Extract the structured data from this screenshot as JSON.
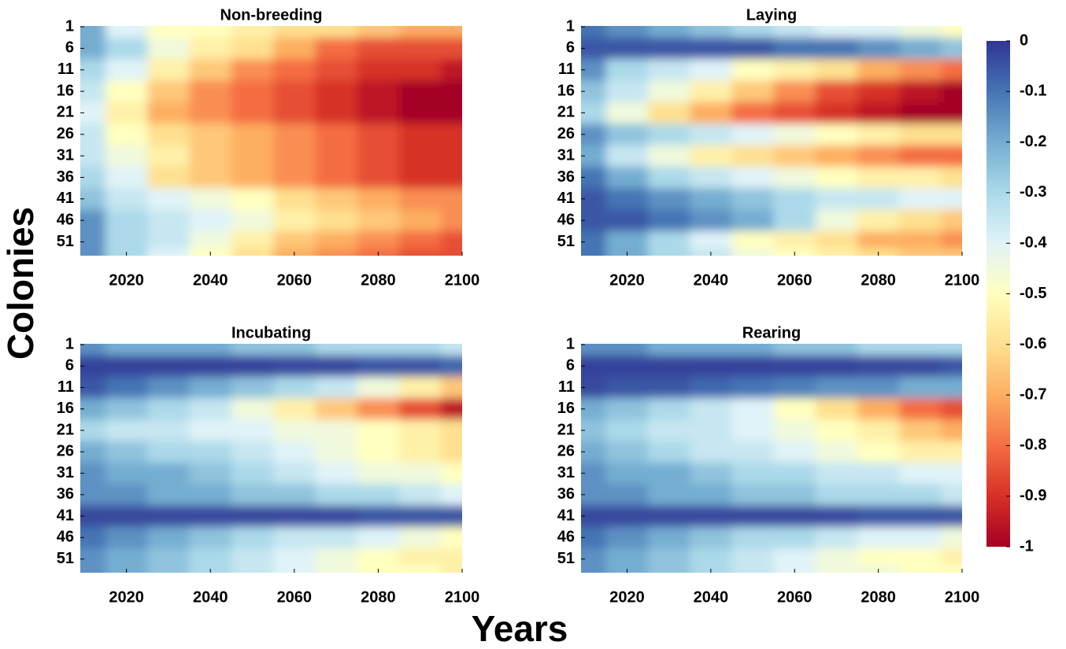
{
  "xlabel": "Years",
  "ylabel": "Colonies",
  "colorbar": {
    "clim": [
      -1,
      0
    ],
    "ticks": [
      0,
      -0.1,
      -0.2,
      -0.3,
      -0.4,
      -0.5,
      -0.6,
      -0.7,
      -0.8,
      -0.9,
      -1
    ],
    "colormap": [
      "#313695",
      "#4575b4",
      "#74add1",
      "#abd9e9",
      "#e0f3f8",
      "#ffffbf",
      "#fee090",
      "#fdae61",
      "#f46d43",
      "#d73027",
      "#a50026"
    ]
  },
  "chart_data": [
    {
      "type": "heatmap",
      "title": "Non-breeding",
      "xlim": [
        2009,
        2100
      ],
      "xticks": [
        2020,
        2040,
        2060,
        2080,
        2100
      ],
      "ylim": [
        0.8,
        54.2
      ],
      "y_reversed": true,
      "yticks": [
        1,
        6,
        11,
        16,
        21,
        26,
        31,
        36,
        41,
        46,
        51
      ],
      "x": [
        2010,
        2020,
        2030,
        2040,
        2050,
        2060,
        2070,
        2080,
        2090,
        2100
      ],
      "y": [
        1,
        6,
        11,
        16,
        21,
        26,
        31,
        36,
        41,
        46,
        51,
        54
      ],
      "z": [
        [
          -0.2,
          -0.4,
          -0.5,
          -0.5,
          -0.55,
          -0.6,
          -0.6,
          -0.65,
          -0.7,
          -0.7
        ],
        [
          -0.2,
          -0.3,
          -0.45,
          -0.55,
          -0.6,
          -0.7,
          -0.8,
          -0.85,
          -0.85,
          -0.85
        ],
        [
          -0.3,
          -0.4,
          -0.55,
          -0.65,
          -0.75,
          -0.8,
          -0.85,
          -0.9,
          -0.9,
          -0.95
        ],
        [
          -0.35,
          -0.5,
          -0.65,
          -0.75,
          -0.8,
          -0.85,
          -0.9,
          -0.95,
          -1,
          -1
        ],
        [
          -0.4,
          -0.55,
          -0.7,
          -0.75,
          -0.8,
          -0.85,
          -0.9,
          -0.95,
          -1,
          -1
        ],
        [
          -0.35,
          -0.5,
          -0.6,
          -0.65,
          -0.7,
          -0.75,
          -0.8,
          -0.85,
          -0.9,
          -0.9
        ],
        [
          -0.35,
          -0.45,
          -0.55,
          -0.65,
          -0.7,
          -0.75,
          -0.8,
          -0.85,
          -0.9,
          -0.9
        ],
        [
          -0.3,
          -0.4,
          -0.6,
          -0.65,
          -0.7,
          -0.75,
          -0.8,
          -0.85,
          -0.9,
          -0.9
        ],
        [
          -0.25,
          -0.35,
          -0.4,
          -0.45,
          -0.5,
          -0.6,
          -0.65,
          -0.7,
          -0.75,
          -0.75
        ],
        [
          -0.15,
          -0.3,
          -0.35,
          -0.4,
          -0.45,
          -0.55,
          -0.6,
          -0.65,
          -0.7,
          -0.75
        ],
        [
          -0.15,
          -0.3,
          -0.35,
          -0.45,
          -0.55,
          -0.65,
          -0.7,
          -0.75,
          -0.8,
          -0.85
        ],
        [
          -0.15,
          -0.3,
          -0.4,
          -0.5,
          -0.6,
          -0.7,
          -0.75,
          -0.8,
          -0.85,
          -0.85
        ]
      ]
    },
    {
      "type": "heatmap",
      "title": "Laying",
      "xlim": [
        2009,
        2100
      ],
      "xticks": [
        2020,
        2040,
        2060,
        2080,
        2100
      ],
      "ylim": [
        0.8,
        54.2
      ],
      "y_reversed": true,
      "yticks": [
        1,
        6,
        11,
        16,
        21,
        26,
        31,
        36,
        41,
        46,
        51
      ],
      "x": [
        2010,
        2020,
        2030,
        2040,
        2050,
        2060,
        2070,
        2080,
        2090,
        2100
      ],
      "y": [
        1,
        6,
        11,
        16,
        21,
        26,
        31,
        36,
        41,
        46,
        51,
        54
      ],
      "z": [
        [
          -0.1,
          -0.15,
          -0.2,
          -0.25,
          -0.3,
          -0.35,
          -0.4,
          -0.4,
          -0.45,
          -0.5
        ],
        [
          -0.05,
          -0.05,
          -0.05,
          -0.05,
          -0.05,
          -0.1,
          -0.1,
          -0.15,
          -0.2,
          -0.25
        ],
        [
          -0.15,
          -0.3,
          -0.35,
          -0.4,
          -0.5,
          -0.55,
          -0.6,
          -0.7,
          -0.75,
          -0.8
        ],
        [
          -0.25,
          -0.35,
          -0.45,
          -0.55,
          -0.65,
          -0.75,
          -0.85,
          -0.9,
          -0.95,
          -1
        ],
        [
          -0.3,
          -0.45,
          -0.6,
          -0.7,
          -0.8,
          -0.85,
          -0.9,
          -0.95,
          -1,
          -1
        ],
        [
          -0.15,
          -0.25,
          -0.3,
          -0.35,
          -0.4,
          -0.45,
          -0.5,
          -0.55,
          -0.6,
          -0.6
        ],
        [
          -0.2,
          -0.35,
          -0.45,
          -0.55,
          -0.6,
          -0.65,
          -0.7,
          -0.75,
          -0.8,
          -0.8
        ],
        [
          -0.1,
          -0.2,
          -0.3,
          -0.35,
          -0.4,
          -0.45,
          -0.5,
          -0.55,
          -0.55,
          -0.6
        ],
        [
          -0.05,
          -0.1,
          -0.15,
          -0.2,
          -0.25,
          -0.3,
          -0.35,
          -0.35,
          -0.4,
          -0.4
        ],
        [
          -0.05,
          -0.05,
          -0.1,
          -0.15,
          -0.2,
          -0.3,
          -0.45,
          -0.55,
          -0.6,
          -0.65
        ],
        [
          -0.1,
          -0.2,
          -0.3,
          -0.4,
          -0.5,
          -0.55,
          -0.6,
          -0.7,
          -0.7,
          -0.75
        ],
        [
          -0.1,
          -0.2,
          -0.3,
          -0.35,
          -0.45,
          -0.5,
          -0.55,
          -0.6,
          -0.65,
          -0.65
        ]
      ]
    },
    {
      "type": "heatmap",
      "title": "Incubating",
      "xlim": [
        2009,
        2100
      ],
      "xticks": [
        2020,
        2040,
        2060,
        2080,
        2100
      ],
      "ylim": [
        0.8,
        54.2
      ],
      "y_reversed": true,
      "yticks": [
        1,
        6,
        11,
        16,
        21,
        26,
        31,
        36,
        41,
        46,
        51
      ],
      "x": [
        2010,
        2020,
        2030,
        2040,
        2050,
        2060,
        2070,
        2080,
        2090,
        2100
      ],
      "y": [
        1,
        6,
        11,
        16,
        21,
        26,
        31,
        36,
        41,
        46,
        51,
        54
      ],
      "z": [
        [
          -0.15,
          -0.2,
          -0.2,
          -0.2,
          -0.25,
          -0.25,
          -0.3,
          -0.3,
          -0.3,
          -0.35
        ],
        [
          -0.02,
          -0.02,
          -0.02,
          -0.02,
          -0.02,
          -0.03,
          -0.03,
          -0.05,
          -0.05,
          -0.08
        ],
        [
          -0.05,
          -0.1,
          -0.15,
          -0.2,
          -0.25,
          -0.3,
          -0.35,
          -0.45,
          -0.55,
          -0.65
        ],
        [
          -0.2,
          -0.25,
          -0.3,
          -0.35,
          -0.45,
          -0.55,
          -0.65,
          -0.75,
          -0.85,
          -0.95
        ],
        [
          -0.3,
          -0.35,
          -0.35,
          -0.4,
          -0.4,
          -0.45,
          -0.45,
          -0.5,
          -0.55,
          -0.6
        ],
        [
          -0.2,
          -0.25,
          -0.3,
          -0.3,
          -0.35,
          -0.4,
          -0.45,
          -0.5,
          -0.55,
          -0.6
        ],
        [
          -0.15,
          -0.2,
          -0.2,
          -0.25,
          -0.3,
          -0.35,
          -0.4,
          -0.45,
          -0.45,
          -0.5
        ],
        [
          -0.15,
          -0.15,
          -0.2,
          -0.2,
          -0.25,
          -0.25,
          -0.3,
          -0.3,
          -0.35,
          -0.4
        ],
        [
          -0.03,
          -0.03,
          -0.03,
          -0.03,
          -0.03,
          -0.03,
          -0.03,
          -0.05,
          -0.05,
          -0.05
        ],
        [
          -0.1,
          -0.15,
          -0.2,
          -0.25,
          -0.3,
          -0.35,
          -0.35,
          -0.4,
          -0.45,
          -0.5
        ],
        [
          -0.15,
          -0.2,
          -0.25,
          -0.3,
          -0.35,
          -0.4,
          -0.45,
          -0.5,
          -0.55,
          -0.55
        ],
        [
          -0.15,
          -0.2,
          -0.25,
          -0.3,
          -0.35,
          -0.4,
          -0.45,
          -0.5,
          -0.5,
          -0.55
        ]
      ]
    },
    {
      "type": "heatmap",
      "title": "Rearing",
      "xlim": [
        2009,
        2100
      ],
      "xticks": [
        2020,
        2040,
        2060,
        2080,
        2100
      ],
      "ylim": [
        0.8,
        54.2
      ],
      "y_reversed": true,
      "yticks": [
        1,
        6,
        11,
        16,
        21,
        26,
        31,
        36,
        41,
        46,
        51
      ],
      "x": [
        2010,
        2020,
        2030,
        2040,
        2050,
        2060,
        2070,
        2080,
        2090,
        2100
      ],
      "y": [
        1,
        6,
        11,
        16,
        21,
        26,
        31,
        36,
        41,
        46,
        51,
        54
      ],
      "z": [
        [
          -0.15,
          -0.15,
          -0.2,
          -0.2,
          -0.2,
          -0.25,
          -0.25,
          -0.3,
          -0.3,
          -0.3
        ],
        [
          -0.02,
          -0.02,
          -0.02,
          -0.02,
          -0.02,
          -0.02,
          -0.02,
          -0.03,
          -0.03,
          -0.05
        ],
        [
          -0.03,
          -0.05,
          -0.05,
          -0.08,
          -0.1,
          -0.12,
          -0.15,
          -0.15,
          -0.2,
          -0.2
        ],
        [
          -0.2,
          -0.25,
          -0.3,
          -0.35,
          -0.4,
          -0.5,
          -0.6,
          -0.7,
          -0.8,
          -0.85
        ],
        [
          -0.25,
          -0.3,
          -0.35,
          -0.35,
          -0.4,
          -0.45,
          -0.5,
          -0.55,
          -0.65,
          -0.7
        ],
        [
          -0.2,
          -0.25,
          -0.3,
          -0.35,
          -0.35,
          -0.4,
          -0.45,
          -0.5,
          -0.55,
          -0.55
        ],
        [
          -0.15,
          -0.2,
          -0.2,
          -0.25,
          -0.3,
          -0.3,
          -0.35,
          -0.35,
          -0.4,
          -0.4
        ],
        [
          -0.15,
          -0.15,
          -0.2,
          -0.2,
          -0.25,
          -0.25,
          -0.3,
          -0.3,
          -0.3,
          -0.35
        ],
        [
          -0.03,
          -0.03,
          -0.03,
          -0.03,
          -0.03,
          -0.03,
          -0.03,
          -0.05,
          -0.05,
          -0.05
        ],
        [
          -0.1,
          -0.15,
          -0.2,
          -0.25,
          -0.3,
          -0.3,
          -0.35,
          -0.4,
          -0.4,
          -0.45
        ],
        [
          -0.15,
          -0.2,
          -0.25,
          -0.3,
          -0.35,
          -0.4,
          -0.45,
          -0.5,
          -0.5,
          -0.55
        ],
        [
          -0.15,
          -0.2,
          -0.25,
          -0.3,
          -0.35,
          -0.4,
          -0.45,
          -0.45,
          -0.5,
          -0.5
        ]
      ]
    }
  ]
}
